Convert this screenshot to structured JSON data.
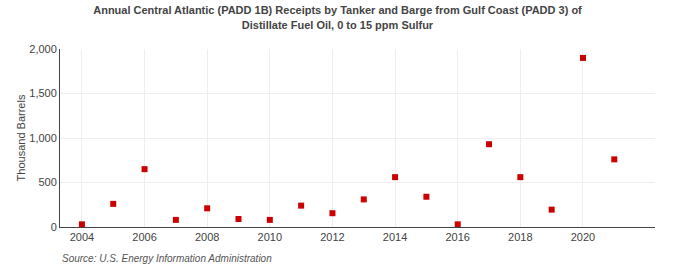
{
  "chart_data": {
    "type": "scatter",
    "title": "Annual Central Atlantic (PADD 1B) Receipts by Tanker and Barge from Gulf Coast (PADD 3) of\nDistillate Fuel Oil, 0 to 15 ppm Sulfur",
    "ylabel": "Thousand Barrels",
    "source": "Source: U.S. Energy Information Administration",
    "x": [
      2004,
      2005,
      2006,
      2007,
      2008,
      2009,
      2010,
      2011,
      2012,
      2013,
      2014,
      2015,
      2016,
      2017,
      2018,
      2019,
      2020,
      2021
    ],
    "values": [
      30,
      260,
      650,
      80,
      210,
      90,
      80,
      240,
      155,
      310,
      560,
      340,
      30,
      930,
      560,
      195,
      1900,
      760
    ],
    "color": "#cc0000",
    "marker": "square",
    "xlim": [
      2003.3,
      2022.3
    ],
    "xticks": [
      2004,
      2006,
      2008,
      2010,
      2012,
      2014,
      2016,
      2018,
      2020
    ],
    "ylim": [
      0,
      2000
    ],
    "yticks": [
      0,
      500,
      {
        "value": 1000,
        "label": "1,000"
      },
      {
        "value": 1500,
        "label": "1,500"
      },
      {
        "value": 2000,
        "label": "2,000"
      }
    ],
    "grid": true
  }
}
